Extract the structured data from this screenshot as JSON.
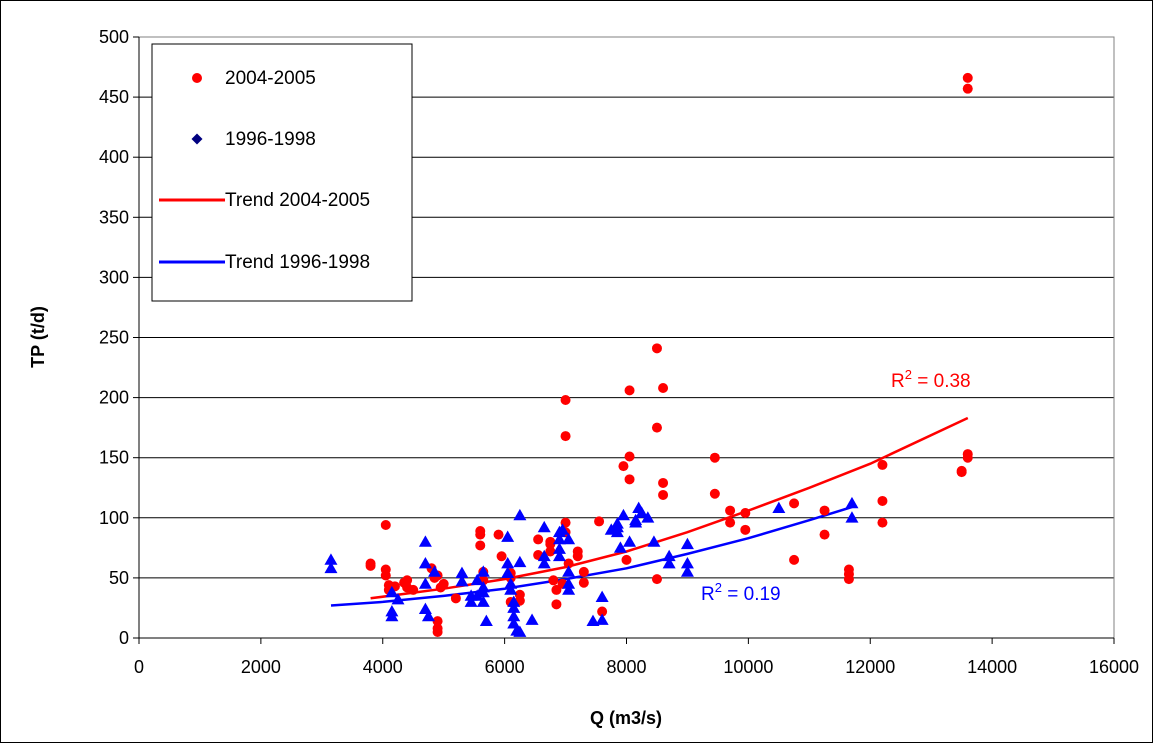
{
  "colors": {
    "series_2004": "#ff0000",
    "series_1996_marker": "#0000ff",
    "series_1996_legend": "#000080",
    "trend_2004": "#ff0000",
    "trend_1996": "#0000ff",
    "grid": "#000000"
  },
  "chart_data": {
    "type": "scatter",
    "xlabel": "Q (m3/s)",
    "ylabel": "TP (t/d)",
    "xlim": [
      0,
      16000
    ],
    "ylim": [
      0,
      500
    ],
    "xticks": [
      0,
      2000,
      4000,
      6000,
      8000,
      10000,
      12000,
      14000,
      16000
    ],
    "yticks": [
      0,
      50,
      100,
      150,
      200,
      250,
      300,
      350,
      400,
      450,
      500
    ],
    "grid": "horizontal",
    "legend_position": "top-left",
    "legend": [
      "2004-2005",
      "1996-1998",
      "Trend 2004-2005",
      "Trend 1996-1998"
    ],
    "annotations": [
      {
        "prefix": "R",
        "sup": "2",
        "suffix": " = 0.38",
        "series": "Trend 2004-2005"
      },
      {
        "prefix": "R",
        "sup": "2",
        "suffix": " = 0.19",
        "series": "Trend 1996-1998"
      }
    ],
    "series": [
      {
        "name": "2004-2005",
        "marker": "circle",
        "points": [
          [
            3800,
            62
          ],
          [
            3800,
            60
          ],
          [
            4050,
            94
          ],
          [
            4050,
            57
          ],
          [
            4050,
            52
          ],
          [
            4100,
            40
          ],
          [
            4100,
            44
          ],
          [
            4200,
            43
          ],
          [
            4350,
            46
          ],
          [
            4400,
            48
          ],
          [
            4400,
            42
          ],
          [
            4500,
            40
          ],
          [
            4800,
            58
          ],
          [
            4850,
            50
          ],
          [
            4900,
            52
          ],
          [
            4900,
            14
          ],
          [
            4900,
            8
          ],
          [
            4900,
            5
          ],
          [
            4950,
            42
          ],
          [
            5000,
            45
          ],
          [
            5200,
            33
          ],
          [
            5600,
            89
          ],
          [
            5600,
            86
          ],
          [
            5600,
            77
          ],
          [
            5650,
            55
          ],
          [
            5650,
            48
          ],
          [
            5900,
            86
          ],
          [
            5950,
            68
          ],
          [
            6100,
            54
          ],
          [
            6100,
            50
          ],
          [
            6100,
            30
          ],
          [
            6250,
            36
          ],
          [
            6250,
            31
          ],
          [
            6550,
            82
          ],
          [
            6550,
            69
          ],
          [
            6750,
            80
          ],
          [
            6750,
            78
          ],
          [
            6750,
            72
          ],
          [
            6800,
            48
          ],
          [
            6850,
            40
          ],
          [
            6850,
            28
          ],
          [
            6950,
            45
          ],
          [
            7000,
            198
          ],
          [
            7000,
            168
          ],
          [
            7000,
            96
          ],
          [
            7000,
            88
          ],
          [
            7050,
            62
          ],
          [
            7200,
            72
          ],
          [
            7200,
            68
          ],
          [
            7300,
            55
          ],
          [
            7300,
            46
          ],
          [
            7550,
            97
          ],
          [
            7600,
            22
          ],
          [
            7950,
            143
          ],
          [
            8000,
            65
          ],
          [
            8050,
            206
          ],
          [
            8050,
            151
          ],
          [
            8050,
            132
          ],
          [
            8500,
            241
          ],
          [
            8500,
            175
          ],
          [
            8500,
            49
          ],
          [
            8600,
            208
          ],
          [
            8600,
            129
          ],
          [
            8600,
            119
          ],
          [
            9450,
            150
          ],
          [
            9450,
            120
          ],
          [
            9700,
            106
          ],
          [
            9700,
            96
          ],
          [
            9950,
            104
          ],
          [
            9950,
            90
          ],
          [
            10750,
            112
          ],
          [
            10750,
            65
          ],
          [
            11250,
            106
          ],
          [
            11250,
            86
          ],
          [
            11650,
            57
          ],
          [
            11650,
            53
          ],
          [
            11650,
            49
          ],
          [
            12200,
            144
          ],
          [
            12200,
            114
          ],
          [
            12200,
            96
          ],
          [
            13500,
            139
          ],
          [
            13500,
            138
          ],
          [
            13600,
            466
          ],
          [
            13600,
            457
          ],
          [
            13600,
            153
          ],
          [
            13600,
            150
          ]
        ]
      },
      {
        "name": "1996-1998",
        "marker": "triangle",
        "points": [
          [
            3150,
            65
          ],
          [
            3150,
            58
          ],
          [
            4150,
            38
          ],
          [
            4150,
            22
          ],
          [
            4150,
            18
          ],
          [
            4250,
            32
          ],
          [
            4700,
            80
          ],
          [
            4700,
            62
          ],
          [
            4700,
            45
          ],
          [
            4700,
            24
          ],
          [
            4750,
            18
          ],
          [
            4850,
            55
          ],
          [
            5300,
            54
          ],
          [
            5300,
            47
          ],
          [
            5450,
            35
          ],
          [
            5450,
            30
          ],
          [
            5550,
            48
          ],
          [
            5550,
            35
          ],
          [
            5650,
            55
          ],
          [
            5650,
            42
          ],
          [
            5650,
            38
          ],
          [
            5650,
            30
          ],
          [
            5700,
            14
          ],
          [
            6050,
            84
          ],
          [
            6050,
            62
          ],
          [
            6050,
            54
          ],
          [
            6100,
            45
          ],
          [
            6100,
            40
          ],
          [
            6150,
            30
          ],
          [
            6150,
            25
          ],
          [
            6150,
            18
          ],
          [
            6150,
            12
          ],
          [
            6200,
            6
          ],
          [
            6250,
            102
          ],
          [
            6250,
            63
          ],
          [
            6250,
            5
          ],
          [
            6450,
            15
          ],
          [
            6650,
            92
          ],
          [
            6650,
            68
          ],
          [
            6650,
            62
          ],
          [
            6900,
            88
          ],
          [
            6900,
            82
          ],
          [
            6900,
            74
          ],
          [
            6900,
            68
          ],
          [
            6950,
            90
          ],
          [
            7050,
            82
          ],
          [
            7050,
            55
          ],
          [
            7050,
            45
          ],
          [
            7050,
            40
          ],
          [
            7450,
            14
          ],
          [
            7600,
            34
          ],
          [
            7600,
            15
          ],
          [
            7750,
            90
          ],
          [
            7850,
            95
          ],
          [
            7850,
            92
          ],
          [
            7850,
            88
          ],
          [
            7900,
            75
          ],
          [
            7950,
            102
          ],
          [
            8050,
            80
          ],
          [
            8150,
            98
          ],
          [
            8150,
            96
          ],
          [
            8200,
            108
          ],
          [
            8250,
            104
          ],
          [
            8350,
            100
          ],
          [
            8450,
            80
          ],
          [
            8700,
            68
          ],
          [
            8700,
            62
          ],
          [
            9000,
            78
          ],
          [
            9000,
            62
          ],
          [
            9000,
            55
          ],
          [
            10500,
            108
          ],
          [
            11700,
            112
          ],
          [
            11700,
            100
          ]
        ]
      },
      {
        "name": "Trend 2004-2005",
        "type": "line",
        "points": [
          [
            3800,
            33
          ],
          [
            5000,
            41
          ],
          [
            6000,
            49
          ],
          [
            7000,
            59
          ],
          [
            8000,
            72
          ],
          [
            9000,
            88
          ],
          [
            10000,
            106
          ],
          [
            11000,
            125
          ],
          [
            12000,
            145
          ],
          [
            13600,
            183
          ]
        ]
      },
      {
        "name": "Trend 1996-1998",
        "type": "line",
        "points": [
          [
            3150,
            27
          ],
          [
            4000,
            30
          ],
          [
            5000,
            35
          ],
          [
            6000,
            41
          ],
          [
            7000,
            49
          ],
          [
            8000,
            58
          ],
          [
            9000,
            70
          ],
          [
            10000,
            83
          ],
          [
            11000,
            98
          ],
          [
            11700,
            109
          ]
        ]
      }
    ]
  }
}
